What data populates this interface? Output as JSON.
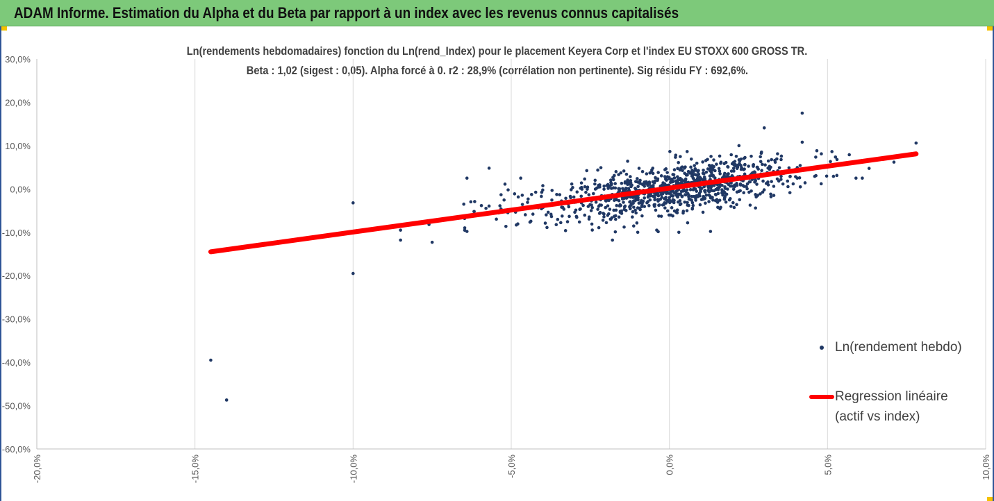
{
  "header": {
    "title": "ADAM Informe. Estimation du Alpha et du Beta par rapport à un index avec les revenus connus capitalisés"
  },
  "colors": {
    "header_bg": "#7dc97a",
    "points": "#203864",
    "regression": "#ff0000",
    "grid": "#d9d9d9",
    "frame": "#2f5597",
    "corner_accent": "#f5c200"
  },
  "chart_data": {
    "type": "scatter",
    "title_line1": "Ln(rendements hebdomadaires) fonction du Ln(rend_Index) pour le placement Keyera Corp et l'index EU STOXX 600 GROSS TR.",
    "title_line2": "Beta : 1,02 (sigest : 0,05). Alpha forcé à 0. r2 : 28,9% (corrélation non pertinente). Sig résidu FY : 692,6%.",
    "xlim": [
      -0.2,
      0.1
    ],
    "ylim": [
      -0.6,
      0.3
    ],
    "x_ticks": [
      "-20,0%",
      "-15,0%",
      "-10,0%",
      "-5,0%",
      "0,0%",
      "5,0%",
      "10,0%"
    ],
    "x_tick_values": [
      -0.2,
      -0.15,
      -0.1,
      -0.05,
      0.0,
      0.05,
      0.1
    ],
    "y_ticks": [
      "30,0%",
      "20,0%",
      "10,0%",
      "0,0%",
      "-10,0%",
      "-20,0%",
      "-30,0%",
      "-40,0%",
      "-50,0%",
      "-60,0%"
    ],
    "y_tick_values": [
      0.3,
      0.2,
      0.1,
      0.0,
      -0.1,
      -0.2,
      -0.3,
      -0.4,
      -0.5,
      -0.6
    ],
    "grid": "vertical lines only",
    "legend_position": "right",
    "beta": 1.02,
    "alpha": 0,
    "series": [
      {
        "name": "Ln(rendement hebdo)",
        "kind": "points",
        "notable_points": [
          [
            -0.145,
            -0.395
          ],
          [
            -0.14,
            -0.487
          ],
          [
            -0.1,
            -0.195
          ],
          [
            -0.1,
            -0.032
          ],
          [
            -0.085,
            -0.118
          ],
          [
            -0.085,
            -0.095
          ],
          [
            -0.075,
            -0.123
          ],
          [
            -0.076,
            -0.082
          ],
          [
            -0.065,
            -0.035
          ],
          [
            -0.064,
            0.025
          ],
          [
            -0.064,
            -0.098
          ],
          [
            -0.057,
            0.048
          ],
          [
            -0.047,
            0.025
          ],
          [
            -0.018,
            -0.118
          ],
          [
            -0.01,
            -0.1
          ],
          [
            -0.004,
            -0.095
          ],
          [
            0.003,
            -0.1
          ],
          [
            0.002,
            0.078
          ],
          [
            0.013,
            -0.098
          ],
          [
            0.022,
            0.1
          ],
          [
            0.03,
            0.141
          ],
          [
            0.042,
            0.175
          ],
          [
            0.042,
            0.108
          ],
          [
            0.053,
            0.068
          ],
          [
            0.059,
            0.025
          ],
          [
            0.048,
            0.012
          ],
          [
            0.071,
            0.062
          ],
          [
            0.078,
            0.106
          ],
          [
            0.061,
            0.025
          ]
        ],
        "cloud": {
          "count": 1000,
          "x_center": 0.003,
          "x_sd": 0.018,
          "y_sd": 0.028,
          "slope": 1.02
        }
      },
      {
        "name": "Regression linéaire (actif vs index)",
        "kind": "line",
        "x": [
          -0.145,
          0.078
        ],
        "y": [
          -0.145,
          0.081
        ]
      }
    ]
  },
  "legend": {
    "points_label": "Ln(rendement hebdo)",
    "line_label_1": "Regression linéaire",
    "line_label_2": "(actif vs index)"
  }
}
